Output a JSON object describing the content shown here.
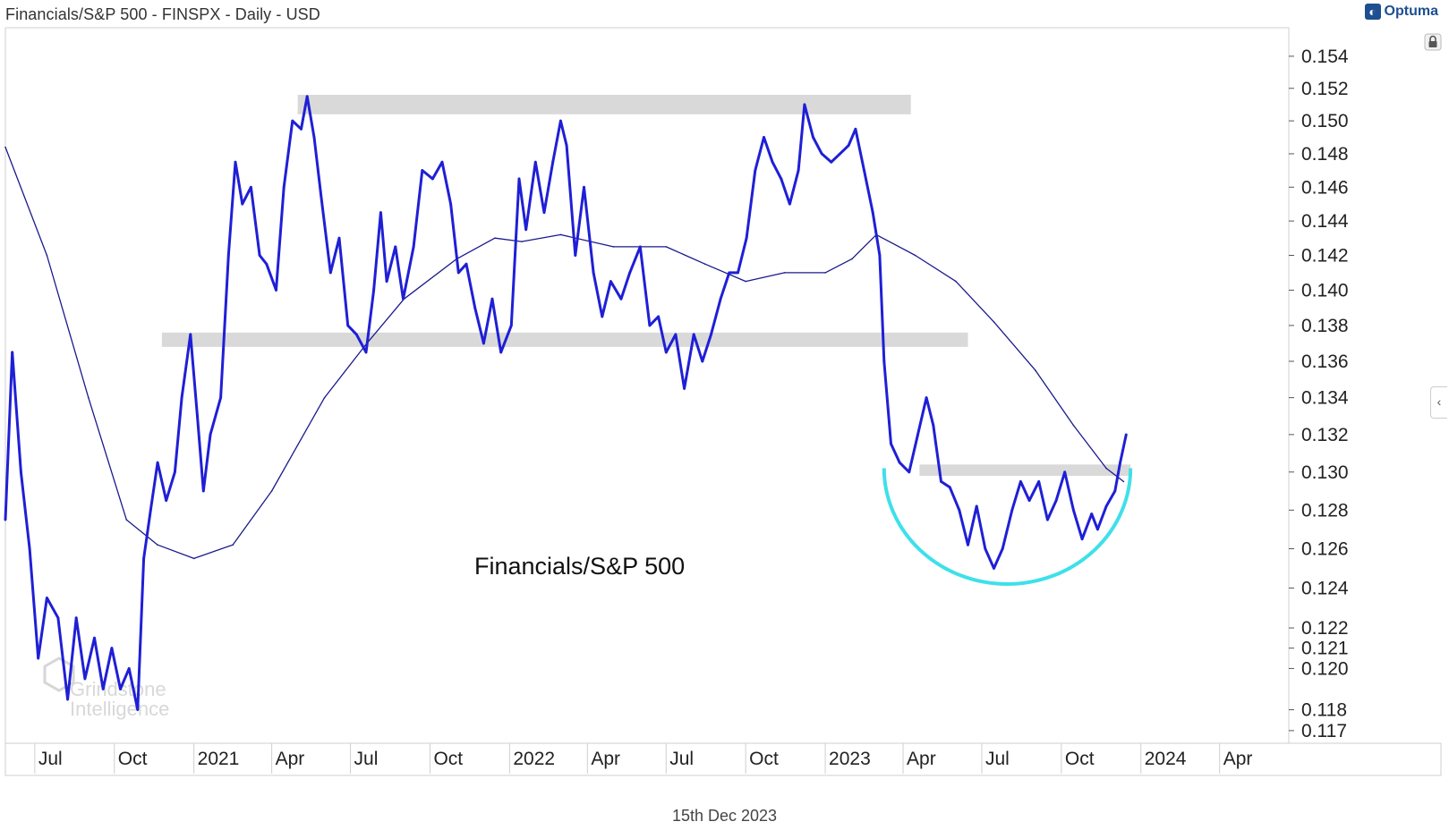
{
  "header": {
    "title": "Financials/S&P 500 - FINSPX - Daily - USD",
    "brand": "Optuma",
    "brand_icon": "optuma-logo-icon"
  },
  "footer": {
    "date": "15th Dec 2023"
  },
  "annotation": {
    "series_label": "Financials/S&P 500"
  },
  "watermark": {
    "line1": "Grindstone",
    "line2": "Intelligence"
  },
  "colors": {
    "price_line": "#1f1fd6",
    "moving_average": "#1a1a8c",
    "resistance_zone": "#d9d9d9",
    "rounded_bottom_arc": "#3ee0ea",
    "axis_text": "#222222"
  },
  "chart_data": {
    "type": "line",
    "title": "Financials/S&P 500",
    "y_scale": "log",
    "ylim": [
      0.1164,
      0.1558
    ],
    "y_ticks": [
      0.154,
      0.152,
      0.15,
      0.148,
      0.146,
      0.144,
      0.142,
      0.14,
      0.138,
      0.136,
      0.134,
      0.132,
      0.13,
      0.128,
      0.126,
      0.124,
      0.122,
      0.121,
      0.12,
      0.118,
      0.117
    ],
    "x_range": [
      "2020-05-28",
      "2024-06-20"
    ],
    "x_ticks": [
      {
        "date": "2020-07-01",
        "label": "Jul"
      },
      {
        "date": "2020-10-01",
        "label": "Oct"
      },
      {
        "date": "2021-01-01",
        "label": "2021"
      },
      {
        "date": "2021-04-01",
        "label": "Apr"
      },
      {
        "date": "2021-07-01",
        "label": "Jul"
      },
      {
        "date": "2021-10-01",
        "label": "Oct"
      },
      {
        "date": "2022-01-01",
        "label": "2022"
      },
      {
        "date": "2022-04-01",
        "label": "Apr"
      },
      {
        "date": "2022-07-01",
        "label": "Jul"
      },
      {
        "date": "2022-10-01",
        "label": "Oct"
      },
      {
        "date": "2023-01-01",
        "label": "2023"
      },
      {
        "date": "2023-04-01",
        "label": "Apr"
      },
      {
        "date": "2023-07-01",
        "label": "Jul"
      },
      {
        "date": "2023-10-01",
        "label": "Oct"
      },
      {
        "date": "2024-01-01",
        "label": "2024"
      },
      {
        "date": "2024-04-01",
        "label": "Apr"
      }
    ],
    "series": [
      {
        "kind": "price",
        "points": [
          [
            "2020-05-28",
            0.1275
          ],
          [
            "2020-06-05",
            0.1365
          ],
          [
            "2020-06-15",
            0.13
          ],
          [
            "2020-06-25",
            0.126
          ],
          [
            "2020-07-05",
            0.1205
          ],
          [
            "2020-07-15",
            0.1235
          ],
          [
            "2020-07-28",
            0.1225
          ],
          [
            "2020-08-08",
            0.1185
          ],
          [
            "2020-08-18",
            0.1225
          ],
          [
            "2020-08-28",
            0.1195
          ],
          [
            "2020-09-08",
            0.1215
          ],
          [
            "2020-09-18",
            0.119
          ],
          [
            "2020-09-28",
            0.121
          ],
          [
            "2020-10-08",
            0.119
          ],
          [
            "2020-10-18",
            0.12
          ],
          [
            "2020-10-28",
            0.118
          ],
          [
            "2020-11-04",
            0.1255
          ],
          [
            "2020-11-12",
            0.128
          ],
          [
            "2020-11-20",
            0.1305
          ],
          [
            "2020-11-30",
            0.1285
          ],
          [
            "2020-12-10",
            0.13
          ],
          [
            "2020-12-18",
            0.134
          ],
          [
            "2020-12-28",
            0.1375
          ],
          [
            "2021-01-05",
            0.133
          ],
          [
            "2021-01-12",
            0.129
          ],
          [
            "2021-01-20",
            0.132
          ],
          [
            "2021-02-01",
            0.134
          ],
          [
            "2021-02-10",
            0.142
          ],
          [
            "2021-02-18",
            0.1475
          ],
          [
            "2021-02-26",
            0.145
          ],
          [
            "2021-03-08",
            0.146
          ],
          [
            "2021-03-18",
            0.142
          ],
          [
            "2021-03-26",
            0.1415
          ],
          [
            "2021-04-06",
            0.14
          ],
          [
            "2021-04-15",
            0.146
          ],
          [
            "2021-04-25",
            0.15
          ],
          [
            "2021-05-05",
            0.1495
          ],
          [
            "2021-05-12",
            0.1515
          ],
          [
            "2021-05-20",
            0.149
          ],
          [
            "2021-05-28",
            0.1455
          ],
          [
            "2021-06-08",
            0.141
          ],
          [
            "2021-06-18",
            0.143
          ],
          [
            "2021-06-28",
            0.138
          ],
          [
            "2021-07-08",
            0.1375
          ],
          [
            "2021-07-19",
            0.1365
          ],
          [
            "2021-07-28",
            0.14
          ],
          [
            "2021-08-05",
            0.1445
          ],
          [
            "2021-08-12",
            0.1405
          ],
          [
            "2021-08-22",
            0.1425
          ],
          [
            "2021-08-31",
            0.1395
          ],
          [
            "2021-09-12",
            0.1425
          ],
          [
            "2021-09-22",
            0.147
          ],
          [
            "2021-10-04",
            0.1465
          ],
          [
            "2021-10-15",
            0.1475
          ],
          [
            "2021-10-25",
            0.145
          ],
          [
            "2021-11-03",
            0.141
          ],
          [
            "2021-11-12",
            0.1415
          ],
          [
            "2021-11-22",
            0.139
          ],
          [
            "2021-12-02",
            0.137
          ],
          [
            "2021-12-12",
            0.1395
          ],
          [
            "2021-12-22",
            0.1365
          ],
          [
            "2022-01-03",
            0.138
          ],
          [
            "2022-01-12",
            0.1465
          ],
          [
            "2022-01-20",
            0.1435
          ],
          [
            "2022-01-31",
            0.1475
          ],
          [
            "2022-02-10",
            0.1445
          ],
          [
            "2022-02-20",
            0.1475
          ],
          [
            "2022-03-01",
            0.15
          ],
          [
            "2022-03-08",
            0.1485
          ],
          [
            "2022-03-18",
            0.142
          ],
          [
            "2022-03-28",
            0.146
          ],
          [
            "2022-04-08",
            0.141
          ],
          [
            "2022-04-18",
            0.1385
          ],
          [
            "2022-04-28",
            0.1405
          ],
          [
            "2022-05-10",
            0.1395
          ],
          [
            "2022-05-20",
            0.141
          ],
          [
            "2022-06-01",
            0.1425
          ],
          [
            "2022-06-12",
            0.138
          ],
          [
            "2022-06-22",
            0.1385
          ],
          [
            "2022-07-01",
            0.1365
          ],
          [
            "2022-07-12",
            0.1375
          ],
          [
            "2022-07-22",
            0.1345
          ],
          [
            "2022-08-02",
            0.1375
          ],
          [
            "2022-08-12",
            0.136
          ],
          [
            "2022-08-22",
            0.1375
          ],
          [
            "2022-09-02",
            0.1395
          ],
          [
            "2022-09-12",
            0.141
          ],
          [
            "2022-09-22",
            0.141
          ],
          [
            "2022-10-02",
            0.143
          ],
          [
            "2022-10-12",
            0.147
          ],
          [
            "2022-10-22",
            0.149
          ],
          [
            "2022-11-01",
            0.1475
          ],
          [
            "2022-11-11",
            0.1465
          ],
          [
            "2022-11-21",
            0.145
          ],
          [
            "2022-12-01",
            0.147
          ],
          [
            "2022-12-08",
            0.151
          ],
          [
            "2022-12-18",
            0.149
          ],
          [
            "2022-12-28",
            0.148
          ],
          [
            "2023-01-08",
            0.1475
          ],
          [
            "2023-01-18",
            0.148
          ],
          [
            "2023-01-28",
            0.1485
          ],
          [
            "2023-02-05",
            0.1495
          ],
          [
            "2023-02-15",
            0.147
          ],
          [
            "2023-02-25",
            0.1445
          ],
          [
            "2023-03-05",
            0.142
          ],
          [
            "2023-03-10",
            0.136
          ],
          [
            "2023-03-18",
            0.1315
          ],
          [
            "2023-03-28",
            0.1305
          ],
          [
            "2023-04-08",
            0.13
          ],
          [
            "2023-04-18",
            0.132
          ],
          [
            "2023-04-28",
            0.134
          ],
          [
            "2023-05-06",
            0.1325
          ],
          [
            "2023-05-15",
            0.1295
          ],
          [
            "2023-05-25",
            0.1292
          ],
          [
            "2023-06-05",
            0.128
          ],
          [
            "2023-06-15",
            0.1262
          ],
          [
            "2023-06-25",
            0.1282
          ],
          [
            "2023-07-05",
            0.126
          ],
          [
            "2023-07-15",
            0.125
          ],
          [
            "2023-07-25",
            0.126
          ],
          [
            "2023-08-05",
            0.128
          ],
          [
            "2023-08-15",
            0.1295
          ],
          [
            "2023-08-25",
            0.1285
          ],
          [
            "2023-09-05",
            0.1295
          ],
          [
            "2023-09-15",
            0.1275
          ],
          [
            "2023-09-25",
            0.1285
          ],
          [
            "2023-10-05",
            0.13
          ],
          [
            "2023-10-15",
            0.128
          ],
          [
            "2023-10-25",
            0.1265
          ],
          [
            "2023-11-05",
            0.1278
          ],
          [
            "2023-11-12",
            0.127
          ],
          [
            "2023-11-22",
            0.1282
          ],
          [
            "2023-12-02",
            0.129
          ],
          [
            "2023-12-08",
            0.1305
          ],
          [
            "2023-12-15",
            0.132
          ]
        ]
      },
      {
        "kind": "moving-average",
        "points": [
          [
            "2020-05-28",
            0.1484
          ],
          [
            "2020-07-15",
            0.142
          ],
          [
            "2020-09-01",
            0.134
          ],
          [
            "2020-10-15",
            0.1275
          ],
          [
            "2020-11-20",
            0.1262
          ],
          [
            "2021-01-01",
            0.1255
          ],
          [
            "2021-02-15",
            0.1262
          ],
          [
            "2021-04-01",
            0.129
          ],
          [
            "2021-06-01",
            0.134
          ],
          [
            "2021-07-20",
            0.137
          ],
          [
            "2021-09-01",
            0.1395
          ],
          [
            "2021-11-01",
            0.1418
          ],
          [
            "2021-12-15",
            0.143
          ],
          [
            "2022-01-15",
            0.1428
          ],
          [
            "2022-03-01",
            0.1432
          ],
          [
            "2022-05-01",
            0.1425
          ],
          [
            "2022-07-01",
            0.1425
          ],
          [
            "2022-08-15",
            0.1415
          ],
          [
            "2022-10-01",
            0.1405
          ],
          [
            "2022-11-15",
            0.141
          ],
          [
            "2023-01-01",
            0.141
          ],
          [
            "2023-02-01",
            0.1418
          ],
          [
            "2023-03-01",
            0.1432
          ],
          [
            "2023-04-15",
            0.142
          ],
          [
            "2023-06-01",
            0.1405
          ],
          [
            "2023-07-15",
            0.1382
          ],
          [
            "2023-09-01",
            0.1355
          ],
          [
            "2023-10-15",
            0.1325
          ],
          [
            "2023-11-22",
            0.1302
          ],
          [
            "2023-12-12",
            0.1295
          ]
        ]
      }
    ],
    "shaded_zones": [
      {
        "from": "2021-05-01",
        "to": "2023-04-10",
        "low": 0.1504,
        "high": 0.1516
      },
      {
        "from": "2020-11-25",
        "to": "2023-06-15",
        "low": 0.1368,
        "high": 0.1376
      },
      {
        "from": "2023-04-20",
        "to": "2023-12-20",
        "low": 0.1298,
        "high": 0.1304
      }
    ],
    "arc": {
      "from": "2023-03-10",
      "to": "2023-12-20",
      "top": 0.1302,
      "bottom": 0.1242
    }
  }
}
